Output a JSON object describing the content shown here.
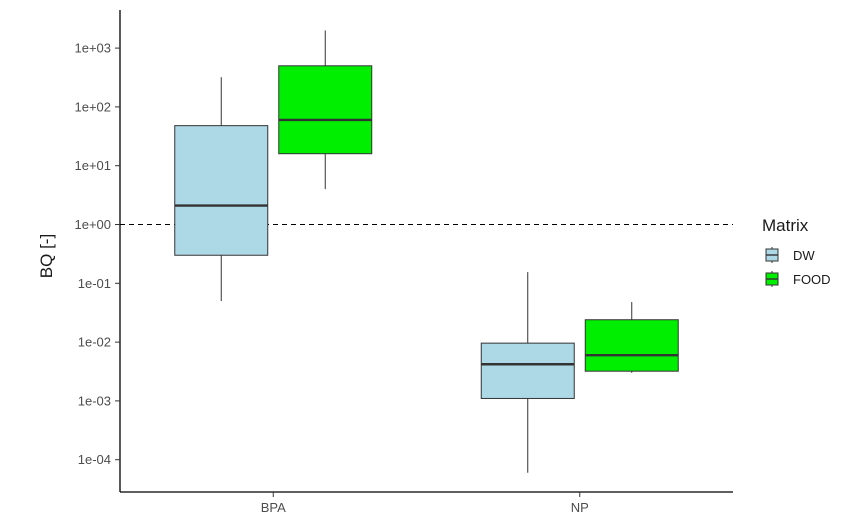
{
  "chart_data": {
    "type": "box",
    "ylabel": "BQ [-]",
    "xlabel": "",
    "y_scale": "log10",
    "ylim": [
      4e-05,
      4000
    ],
    "y_ticks": [
      {
        "value": 0.0001,
        "label": "1e-04"
      },
      {
        "value": 0.001,
        "label": "1e-03"
      },
      {
        "value": 0.01,
        "label": "1e-02"
      },
      {
        "value": 0.1,
        "label": "1e-01"
      },
      {
        "value": 1,
        "label": "1e+00"
      },
      {
        "value": 10,
        "label": "1e+01"
      },
      {
        "value": 100,
        "label": "1e+02"
      },
      {
        "value": 1000,
        "label": "1e+03"
      }
    ],
    "categories": [
      "BPA",
      "NP"
    ],
    "reference_line": {
      "value": 1,
      "style": "dashed"
    },
    "legend": {
      "title": "Matrix",
      "position": "right"
    },
    "series": [
      {
        "name": "DW",
        "color": "#add8e6",
        "boxes": [
          {
            "category": "BPA",
            "min": 0.05,
            "q1": 0.3,
            "median": 2.1,
            "q3": 48,
            "max": 320
          },
          {
            "category": "NP",
            "min": 6e-05,
            "q1": 0.0011,
            "median": 0.0042,
            "q3": 0.0096,
            "max": 0.155
          }
        ]
      },
      {
        "name": "FOOD",
        "color": "#00ee00",
        "boxes": [
          {
            "category": "BPA",
            "min": 4,
            "q1": 16,
            "median": 60,
            "q3": 500,
            "max": 2000
          },
          {
            "category": "NP",
            "min": 0.003,
            "q1": 0.0032,
            "median": 0.006,
            "q3": 0.024,
            "max": 0.048
          }
        ]
      }
    ]
  }
}
